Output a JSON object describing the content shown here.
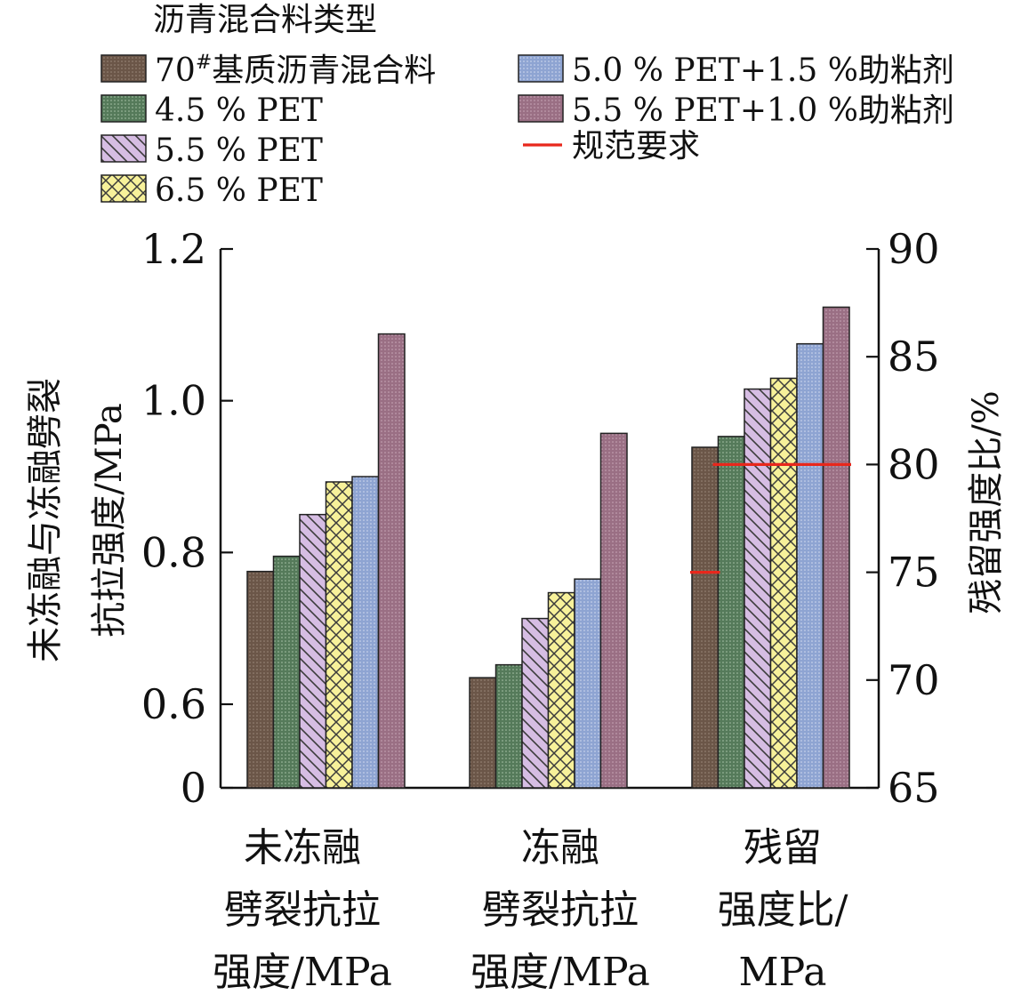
{
  "chart_data": {
    "type": "bar",
    "legend": {
      "title": "沥青混合料类型",
      "placement": "top",
      "entries": [
        {
          "series_index": 0
        },
        {
          "series_index": 1
        },
        {
          "series_index": 2
        },
        {
          "series_index": 3
        },
        {
          "series_index": 4
        },
        {
          "series_index": 5
        },
        {
          "label": "规范要求",
          "kind": "line",
          "color": "#e8271c"
        }
      ]
    },
    "categories": [
      "未冻融\n劈裂抗拉\n强度/MPa",
      "冻融\n劈裂抗拉\n强度/MPa",
      "残留\n强度比/\nMPa"
    ],
    "ylabel_left": "未冻融与冻融劈裂\n抗拉强度/MPa",
    "ylabel_right": "残留强度比/%",
    "y_left": {
      "lim": [
        0,
        1.2
      ],
      "ticks": [
        0,
        0.6,
        0.8,
        1.0,
        1.2
      ],
      "tick_labels": [
        "0",
        "0.6",
        "0.8",
        "1.0",
        "1.2"
      ],
      "axis_break": true
    },
    "y_right": {
      "lim": [
        65,
        90
      ],
      "ticks": [
        65,
        70,
        75,
        80,
        85,
        90
      ],
      "tick_labels": [
        "65",
        "70",
        "75",
        "80",
        "85",
        "90"
      ]
    },
    "series": [
      {
        "name": "70#基质沥青混合料",
        "name_main": "70",
        "name_sup": "#",
        "name_rest": "基质沥青混合料",
        "color": "#6b5648",
        "pattern": "dots",
        "values": [
          0.775,
          0.635,
          80.8
        ]
      },
      {
        "name": "4.5 % PET",
        "color": "#557a5a",
        "pattern": "grid",
        "values": [
          0.795,
          0.652,
          81.3
        ]
      },
      {
        "name": "5.5 % PET",
        "color": "#c6a8d6",
        "pattern": "diag",
        "values": [
          0.85,
          0.713,
          83.5
        ]
      },
      {
        "name": "6.5 % PET",
        "color": "#f6f09a",
        "pattern": "cross",
        "values": [
          0.893,
          0.747,
          84.0
        ]
      },
      {
        "name": "5.0 % PET+1.5 %助粘剂",
        "color": "#8ea4d2",
        "pattern": "fine",
        "values": [
          0.9,
          0.765,
          85.6
        ]
      },
      {
        "name": "5.5 % PET+1.0 %助粘剂",
        "color": "#9a6f84",
        "pattern": "fine",
        "values": [
          1.088,
          0.957,
          87.3
        ]
      }
    ],
    "value_axis_by_category": [
      "left",
      "left",
      "right"
    ],
    "spec_requirements": [
      {
        "category_index": 2,
        "axis": "right",
        "value": 75,
        "span": "first-bar"
      },
      {
        "category_index": 2,
        "axis": "right",
        "value": 80,
        "span": "rest-bars"
      }
    ],
    "grid": false
  }
}
